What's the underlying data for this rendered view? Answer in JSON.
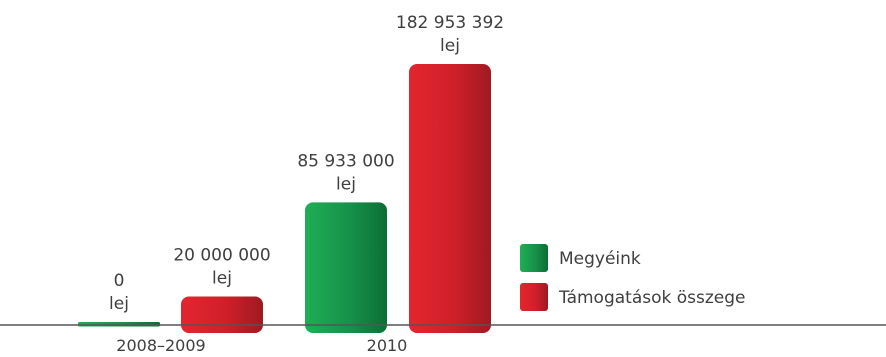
{
  "chart_data": {
    "type": "bar",
    "categories": [
      "2008–2009",
      "2010"
    ],
    "series": [
      {
        "name": "Megyéink",
        "values": [
          0,
          85933000
        ],
        "labels": [
          "0",
          "85 933 000"
        ],
        "color": "#1a9b4a"
      },
      {
        "name": "Támogatások összege",
        "values": [
          20000000,
          182953392
        ],
        "labels": [
          "20 000 000",
          "182 953 392"
        ],
        "color": "#d9232d"
      }
    ],
    "unit": "lej",
    "ylim": [
      0,
      182953392
    ],
    "grid": false,
    "legend_position": "right"
  }
}
